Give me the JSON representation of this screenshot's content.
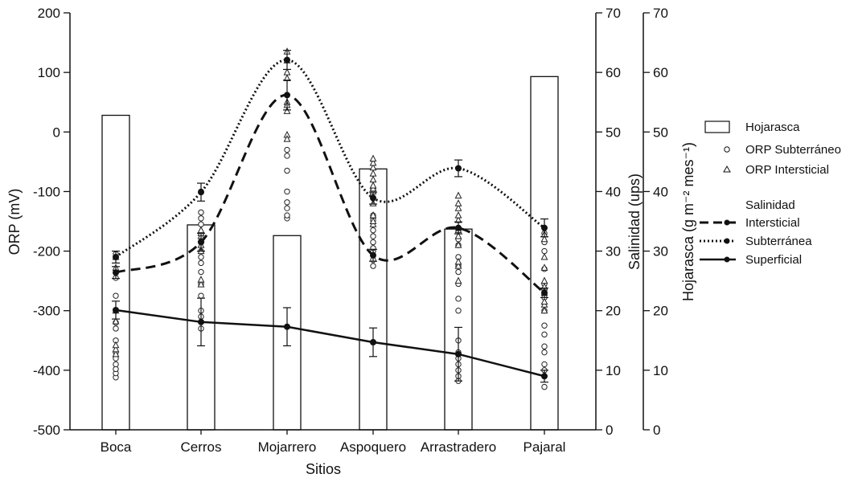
{
  "chart_data": {
    "type": "bar",
    "xlabel": "Sitios",
    "ylabel_left": "ORP (mV)",
    "ylabel_right_1": "Salinidad (ups)",
    "ylabel_right_2": "Hojarasca (g m⁻² mes⁻¹)",
    "categories": [
      "Boca",
      "Cerros",
      "Mojarrero",
      "Aspoquero",
      "Arrastradero",
      "Pajaral"
    ],
    "yticks_left": [
      "200",
      "100",
      "0",
      "-100",
      "-200",
      "-300",
      "-400",
      "-500"
    ],
    "yticks_right": [
      "70",
      "60",
      "50",
      "40",
      "30",
      "20",
      "10",
      "0"
    ],
    "ylim_left": [
      -500,
      200
    ],
    "ylim_right": [
      0,
      70
    ],
    "hojarasca": {
      "name": "Hojarasca",
      "values": [
        52.8,
        34.4,
        32.6,
        43.8,
        33.7,
        59.3
      ]
    },
    "salinity_series": [
      {
        "name": "Intersticial",
        "style": "dashed",
        "values": [
          26.4,
          31.5,
          56.2,
          29.3,
          33.9,
          23.0
        ],
        "errors": [
          1.0,
          1.5,
          2.5,
          1.0,
          1.0,
          0.8
        ]
      },
      {
        "name": "Subterránea",
        "style": "dotted",
        "values": [
          29.0,
          39.9,
          62.1,
          38.9,
          43.9,
          33.9
        ],
        "errors": [
          1.0,
          1.5,
          1.6,
          1.0,
          1.4,
          1.5
        ]
      },
      {
        "name": "Superficial",
        "style": "solid",
        "values": [
          20.1,
          18.1,
          17.3,
          14.7,
          12.7,
          9.0
        ],
        "errors": [
          1.5,
          4.0,
          3.2,
          2.4,
          4.5,
          1.0
        ]
      }
    ],
    "orp_subterraneo": [
      [
        -412,
        -405,
        -398,
        -390,
        -380,
        -370,
        -350,
        -330,
        -320,
        -300,
        -275,
        -245,
        -205
      ],
      [
        -330,
        -310,
        -300,
        -275,
        -255,
        -235,
        -220,
        -210,
        -200,
        -185,
        -170,
        -155,
        -145,
        -135,
        -100
      ],
      [
        -145,
        -140,
        -128,
        -118,
        -100,
        -65,
        -40,
        -30
      ],
      [
        -225,
        -215,
        -200,
        -195,
        -185,
        -175,
        -165,
        -148,
        -140,
        -110,
        -95
      ],
      [
        -418,
        -410,
        -400,
        -390,
        -380,
        -370,
        -350,
        -300,
        -280,
        -255,
        -235,
        -225,
        -210,
        -190,
        -180,
        -165
      ],
      [
        -428,
        -400,
        -390,
        -370,
        -360,
        -340,
        -325,
        -300,
        -278,
        -265,
        -255,
        -230,
        -200,
        -185,
        -170
      ]
    ],
    "orp_intersticial": [
      [
        -373,
        -365,
        -358,
        -318,
        -300,
        -228,
        -210
      ],
      [
        -256,
        -248,
        -200,
        -190,
        -180,
        -175,
        -170,
        -165
      ],
      [
        135,
        120,
        100,
        90,
        50,
        45,
        35,
        -5,
        -12
      ],
      [
        -155,
        -150,
        -140,
        -120,
        -100,
        -95,
        -90,
        -80,
        -70,
        -60,
        -52,
        -45
      ],
      [
        -250,
        -225,
        -218,
        -190,
        -175,
        -165,
        -148,
        -140,
        -128,
        -120,
        -107
      ],
      [
        -300,
        -290,
        -285,
        -270,
        -260,
        -250,
        -228,
        -210,
        -180,
        -172
      ]
    ],
    "legend": {
      "hojarasca": "Hojarasca",
      "orp_sub": "ORP Subterráneo",
      "orp_int": "ORP Intersticial",
      "salinidad": "Salinidad",
      "intersticial": "Intersticial",
      "subterranea": "Subterránea",
      "superficial": "Superficial"
    }
  }
}
